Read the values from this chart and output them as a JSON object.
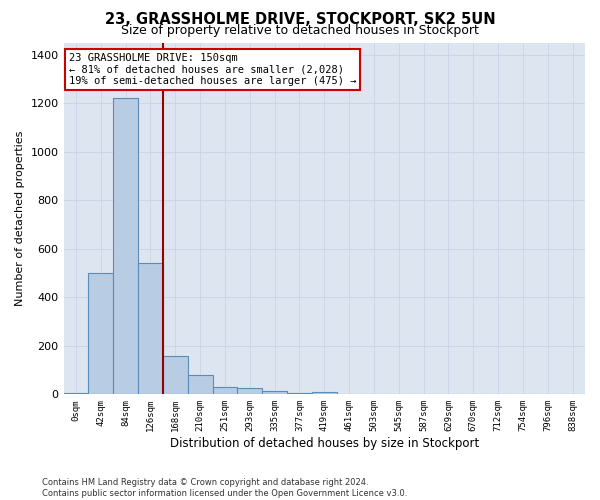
{
  "title": "23, GRASSHOLME DRIVE, STOCKPORT, SK2 5UN",
  "subtitle": "Size of property relative to detached houses in Stockport",
  "xlabel": "Distribution of detached houses by size in Stockport",
  "ylabel": "Number of detached properties",
  "footer_line1": "Contains HM Land Registry data © Crown copyright and database right 2024.",
  "footer_line2": "Contains public sector information licensed under the Open Government Licence v3.0.",
  "categories": [
    "0sqm",
    "42sqm",
    "84sqm",
    "126sqm",
    "168sqm",
    "210sqm",
    "251sqm",
    "293sqm",
    "335sqm",
    "377sqm",
    "419sqm",
    "461sqm",
    "503sqm",
    "545sqm",
    "587sqm",
    "629sqm",
    "670sqm",
    "712sqm",
    "754sqm",
    "796sqm",
    "838sqm"
  ],
  "bar_values": [
    5,
    500,
    1220,
    540,
    160,
    80,
    32,
    25,
    15,
    5,
    10,
    0,
    0,
    0,
    0,
    0,
    0,
    0,
    0,
    0,
    0
  ],
  "bar_color": "#b8cce4",
  "bar_edge_color": "#5b8db8",
  "grid_color": "#c8d4e8",
  "background_color": "#dde5f0",
  "vline_color": "#990000",
  "annotation_line1": "23 GRASSHOLME DRIVE: 150sqm",
  "annotation_line2": "← 81% of detached houses are smaller (2,028)",
  "annotation_line3": "19% of semi-detached houses are larger (475) →",
  "annotation_box_color": "#cc0000",
  "ylim": [
    0,
    1450
  ],
  "yticks": [
    0,
    200,
    400,
    600,
    800,
    1000,
    1200,
    1400
  ],
  "vline_pos": 3.5
}
